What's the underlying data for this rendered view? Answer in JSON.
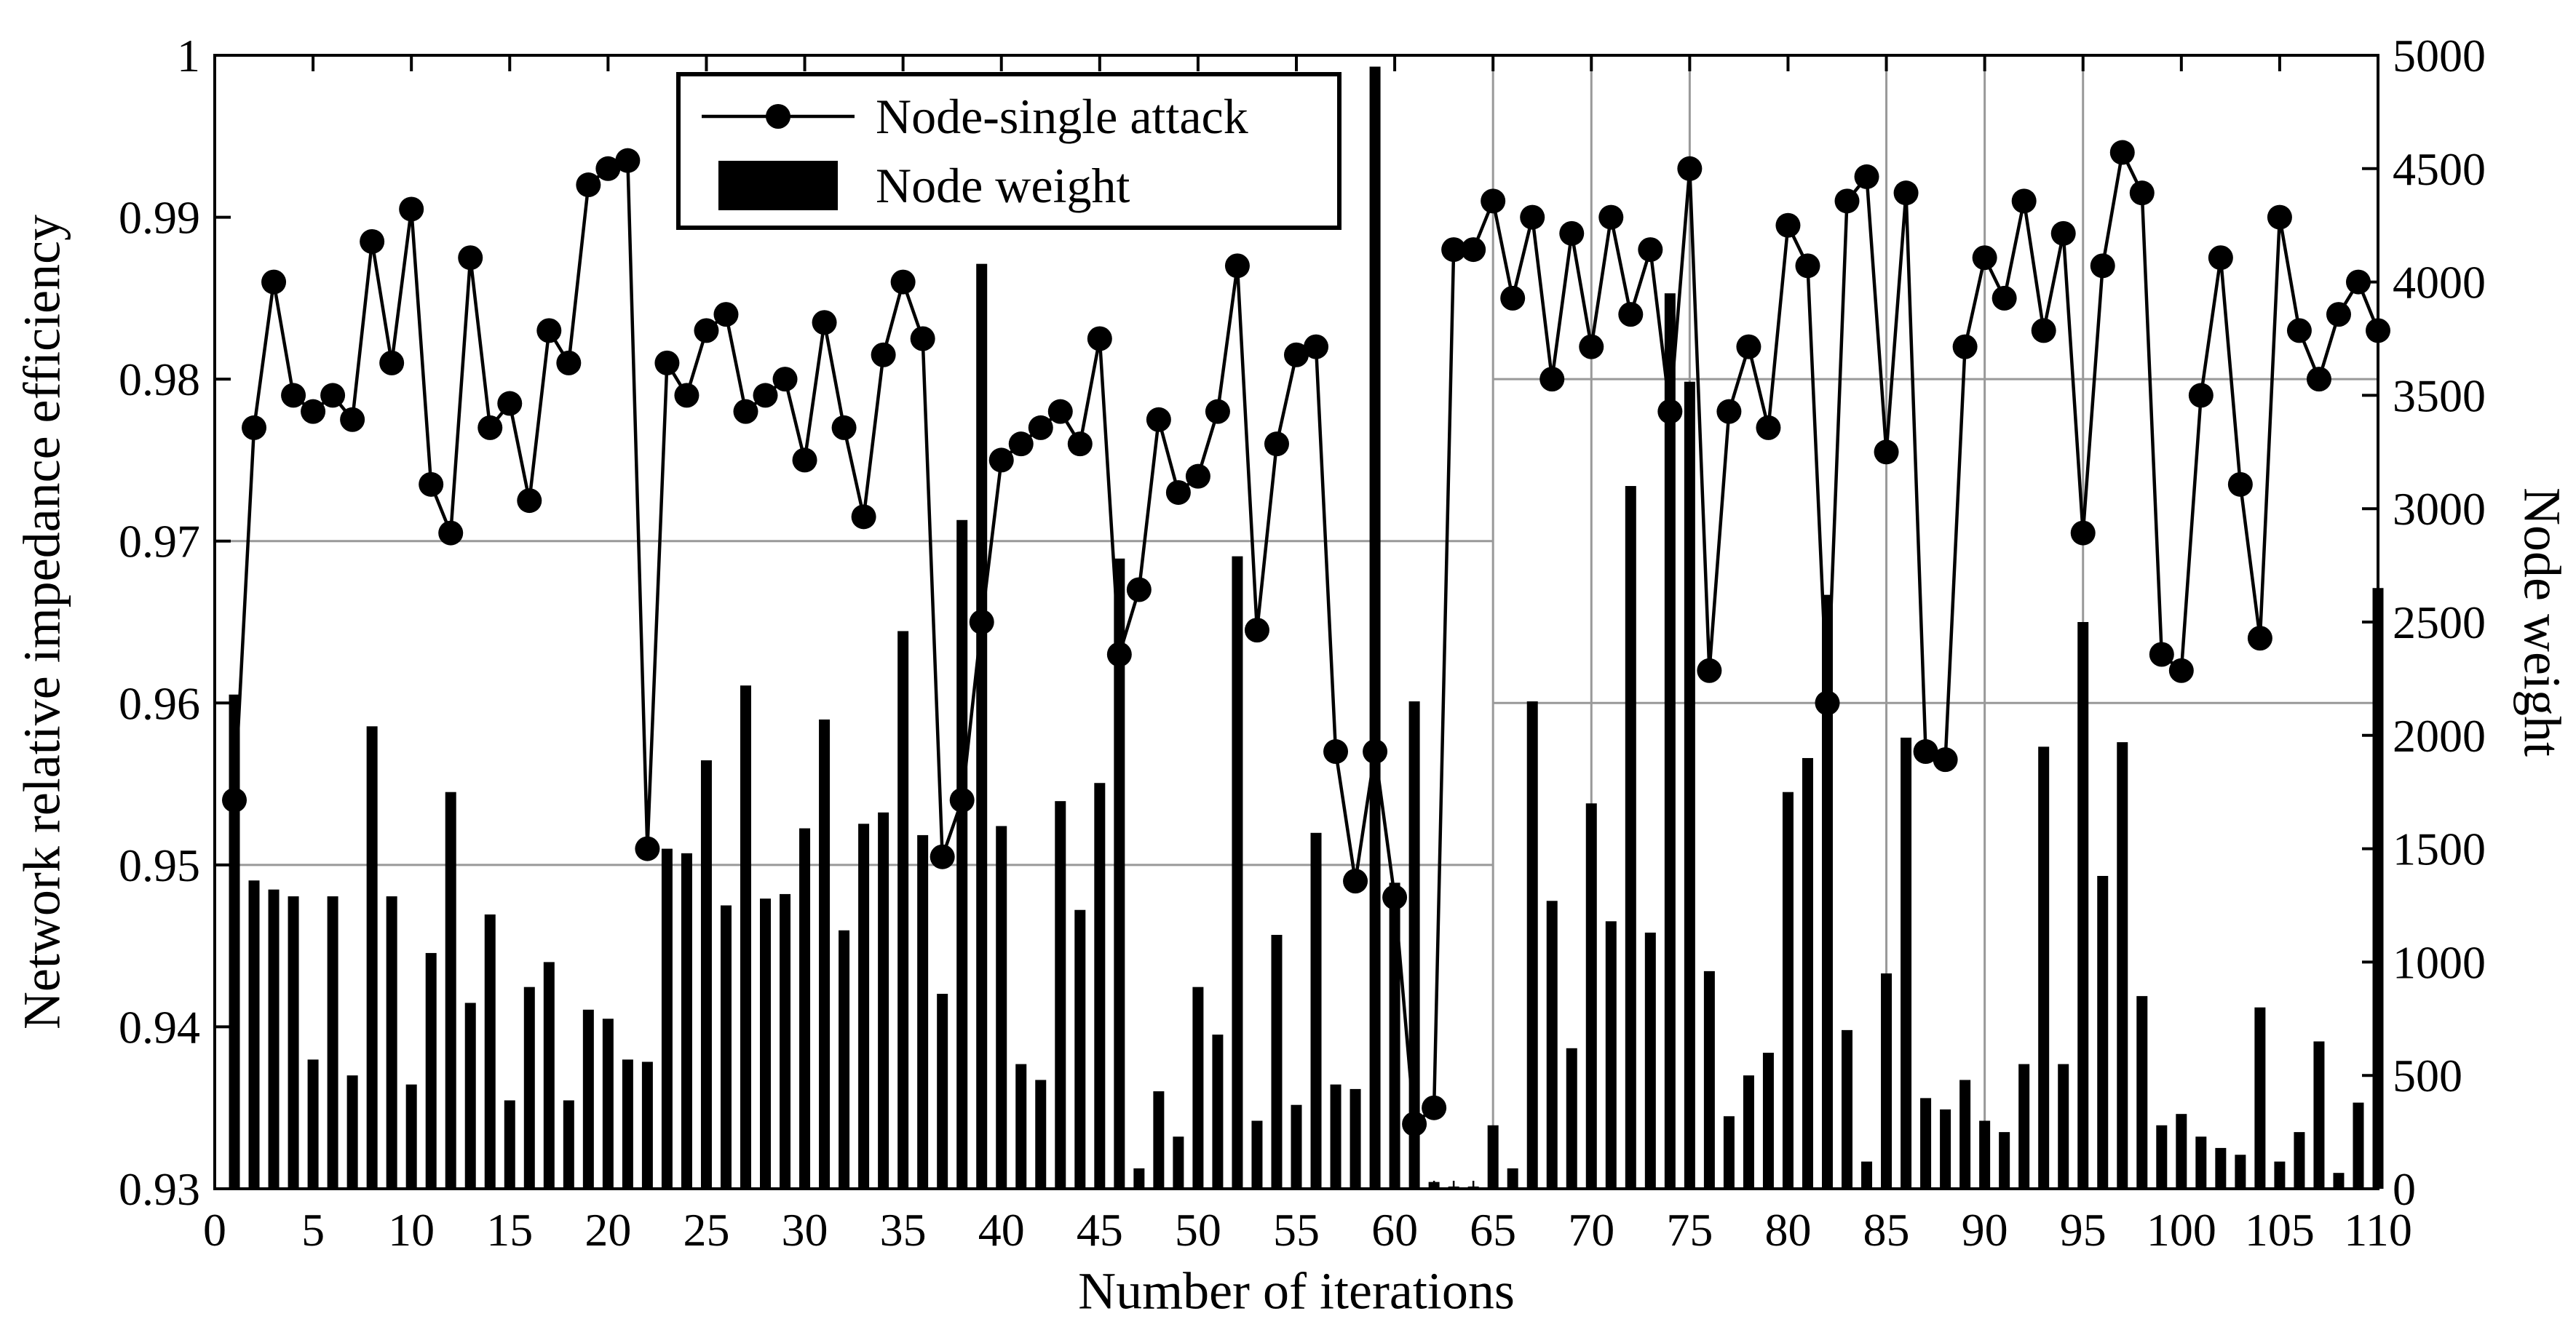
{
  "figure": {
    "background": "#ffffff"
  },
  "chart_data": {
    "type": "combo",
    "title": "",
    "xlabel": "Number of iterations",
    "ylabel_left": "Network relative impedance efficiency",
    "ylabel_right": "Node weight",
    "xlim": [
      0,
      110
    ],
    "ylim_left": [
      0.93,
      1.0
    ],
    "ylim_right": [
      0,
      5000
    ],
    "x_start": 1,
    "x_ticks": [
      0,
      5,
      10,
      15,
      20,
      25,
      30,
      35,
      40,
      45,
      50,
      55,
      60,
      65,
      70,
      75,
      80,
      85,
      90,
      95,
      100,
      105,
      110
    ],
    "y_left_ticks": [
      "0.93",
      "0.94",
      "0.95",
      "0.96",
      "0.97",
      "0.98",
      "0.99",
      "1"
    ],
    "y_right_ticks": [
      "0",
      "500",
      "1000",
      "1500",
      "2000",
      "2500",
      "3000",
      "3500",
      "4000",
      "4500",
      "5000"
    ],
    "legend": {
      "position": "top-left-inside",
      "border_color": "#000000",
      "background": "#ffffff"
    },
    "series": [
      {
        "name": "Node-single attack",
        "type": "line",
        "axis": "left",
        "color": "#000000",
        "marker": "circle",
        "values": [
          0.954,
          0.977,
          0.986,
          0.979,
          0.978,
          0.979,
          0.9775,
          0.9885,
          0.981,
          0.9905,
          0.9735,
          0.9705,
          0.9875,
          0.977,
          0.9785,
          0.9725,
          0.983,
          0.981,
          0.992,
          0.993,
          0.9935,
          0.951,
          0.981,
          0.979,
          0.983,
          0.984,
          0.978,
          0.979,
          0.98,
          0.975,
          0.9835,
          0.977,
          0.9715,
          0.9815,
          0.986,
          0.9825,
          0.9505,
          0.954,
          0.965,
          0.975,
          0.976,
          0.977,
          0.978,
          0.976,
          0.9825,
          0.963,
          0.967,
          0.9775,
          0.973,
          0.974,
          0.978,
          0.987,
          0.9645,
          0.976,
          0.9815,
          0.982,
          0.957,
          0.949,
          0.957,
          0.948,
          0.934,
          0.935,
          0.988,
          0.988,
          0.991,
          0.985,
          0.99,
          0.98,
          0.989,
          0.982,
          0.99,
          0.984,
          0.988,
          0.978,
          0.993,
          0.962,
          0.978,
          0.982,
          0.977,
          0.9895,
          0.987,
          0.96,
          0.991,
          0.9925,
          0.9755,
          0.9915,
          0.957,
          0.9565,
          0.982,
          0.9875,
          0.985,
          0.991,
          0.983,
          0.989,
          0.9705,
          0.987,
          0.994,
          0.9915,
          0.963,
          0.962,
          0.979,
          0.9875,
          0.9735,
          0.964,
          0.99,
          0.983,
          0.98,
          0.984,
          0.986,
          0.983
        ]
      },
      {
        "name": "Node weight",
        "type": "bar",
        "axis": "right",
        "color": "#000000",
        "values": [
          2180,
          1360,
          1320,
          1290,
          570,
          1290,
          500,
          2040,
          1290,
          460,
          1040,
          1750,
          820,
          1210,
          390,
          890,
          1000,
          390,
          790,
          750,
          570,
          560,
          1500,
          1480,
          1890,
          1250,
          2220,
          1280,
          1300,
          1590,
          2070,
          1140,
          1610,
          1660,
          2460,
          1560,
          860,
          2950,
          4080,
          1600,
          550,
          480,
          1710,
          1230,
          1790,
          2780,
          90,
          430,
          230,
          890,
          680,
          2790,
          300,
          1120,
          370,
          1570,
          460,
          440,
          4950,
          1350,
          2150,
          30,
          10,
          10,
          280,
          90,
          2150,
          1270,
          620,
          1700,
          1180,
          3100,
          1130,
          3950,
          3560,
          960,
          320,
          500,
          600,
          1750,
          1900,
          2620,
          700,
          120,
          950,
          1990,
          400,
          350,
          480,
          300,
          250,
          550,
          1950,
          550,
          2500,
          1380,
          1970,
          850,
          280,
          330,
          230,
          180,
          150,
          800,
          120,
          250,
          650,
          70,
          380,
          2650
        ]
      }
    ],
    "gridlines": {
      "color": "#999999",
      "horizontal_left_axis": [
        {
          "y": 0.95,
          "x0": 0,
          "x1": 65
        },
        {
          "y": 0.97,
          "x0": 0,
          "x1": 65
        },
        {
          "y": 0.96,
          "x0": 65,
          "x1": 110
        },
        {
          "y": 0.98,
          "x0": 65,
          "x1": 110
        }
      ],
      "vertical": [
        {
          "x": 65
        },
        {
          "x": 70
        },
        {
          "x": 75
        },
        {
          "x": 85
        },
        {
          "x": 90
        },
        {
          "x": 95
        }
      ]
    }
  }
}
